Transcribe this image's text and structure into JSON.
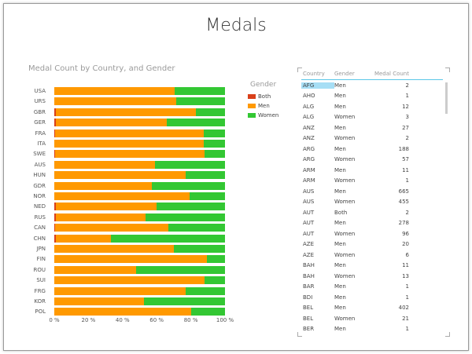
{
  "title": "Medals",
  "chart_data": {
    "type": "bar",
    "orientation": "horizontal",
    "stacked": "100%",
    "title": "Medal Count by Country, and Gender",
    "categories": [
      "USA",
      "URS",
      "GBR",
      "GER",
      "FRA",
      "ITA",
      "SWE",
      "AUS",
      "HUN",
      "GDR",
      "NOR",
      "NED",
      "RUS",
      "CAN",
      "CHN",
      "JPN",
      "FIN",
      "ROU",
      "SUI",
      "FRG",
      "KOR",
      "POL"
    ],
    "series": [
      {
        "name": "Both",
        "color": "#d9401a",
        "values": [
          0,
          0,
          1,
          1,
          0.5,
          0,
          0.5,
          0,
          0,
          0,
          0,
          1,
          1,
          0.3,
          1,
          0,
          0,
          0,
          0,
          0,
          0,
          0
        ]
      },
      {
        "name": "Men",
        "color": "#ff9900",
        "values": [
          70.5,
          71.4,
          82,
          65,
          87.2,
          87.4,
          87.5,
          59,
          77,
          57,
          79.4,
          59,
          52.4,
          66.3,
          32,
          70,
          89.4,
          47.7,
          87.8,
          77,
          52.6,
          80
        ]
      },
      {
        "name": "Women",
        "color": "#33c733",
        "values": [
          29.5,
          28.6,
          17,
          34,
          12.3,
          12.6,
          12,
          41,
          23,
          43,
          20.6,
          40,
          46.6,
          33.4,
          67,
          30,
          10.6,
          52.3,
          12.2,
          23,
          47.4,
          20
        ]
      }
    ],
    "xticks": [
      "0 %",
      "20 %",
      "40 %",
      "60 %",
      "80 %",
      "100 %"
    ],
    "xlim": [
      0,
      100
    ],
    "legend_title": "Gender",
    "legend_position": "right"
  },
  "table": {
    "headers": [
      "Country",
      "Gender",
      "Medal Count"
    ],
    "rows": [
      [
        "AFG",
        "Men",
        "2"
      ],
      [
        "AHO",
        "Men",
        "1"
      ],
      [
        "ALG",
        "Men",
        "12"
      ],
      [
        "ALG",
        "Women",
        "3"
      ],
      [
        "ANZ",
        "Men",
        "27"
      ],
      [
        "ANZ",
        "Women",
        "2"
      ],
      [
        "ARG",
        "Men",
        "188"
      ],
      [
        "ARG",
        "Women",
        "57"
      ],
      [
        "ARM",
        "Men",
        "11"
      ],
      [
        "ARM",
        "Women",
        "1"
      ],
      [
        "AUS",
        "Men",
        "665"
      ],
      [
        "AUS",
        "Women",
        "455"
      ],
      [
        "AUT",
        "Both",
        "2"
      ],
      [
        "AUT",
        "Men",
        "278"
      ],
      [
        "AUT",
        "Women",
        "96"
      ],
      [
        "AZE",
        "Men",
        "20"
      ],
      [
        "AZE",
        "Women",
        "6"
      ],
      [
        "BAH",
        "Men",
        "11"
      ],
      [
        "BAH",
        "Women",
        "13"
      ],
      [
        "BAR",
        "Men",
        "1"
      ],
      [
        "BDI",
        "Men",
        "1"
      ],
      [
        "BEL",
        "Men",
        "402"
      ],
      [
        "BEL",
        "Women",
        "21"
      ],
      [
        "BER",
        "Men",
        "1"
      ]
    ],
    "selected_cell_color": "#a6def5"
  }
}
